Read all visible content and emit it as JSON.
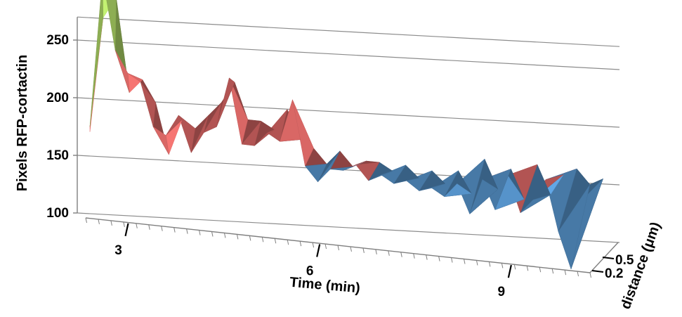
{
  "chart_data": {
    "type": "surface",
    "title": "",
    "ylabel": "Pixels RFP-cortactin",
    "xlabel": "Time (min)",
    "zlabel": "distance (μm)",
    "ylim": [
      100,
      270
    ],
    "y_ticks": [
      "100",
      "150",
      "200",
      "250"
    ],
    "x_ticks": [
      "3",
      "6",
      "9"
    ],
    "z_ticks": [
      "0.2",
      "0.5"
    ],
    "x_range_min": [
      2.4,
      10.3
    ],
    "grid": true,
    "color_bands": [
      {
        "range": [
          100,
          150
        ],
        "color": "#5b9bd5"
      },
      {
        "range": [
          150,
          200
        ],
        "color": "#e46c6a"
      },
      {
        "range": [
          200,
          250
        ],
        "color": "#b5df6a"
      },
      {
        "range": [
          250,
          300
        ],
        "color": "#9b7fcf"
      }
    ],
    "series": [
      {
        "name": "0.2",
        "x": [
          2.4,
          2.6,
          2.8,
          3.0,
          3.2,
          3.4,
          3.6,
          3.8,
          4.0,
          4.2,
          4.4,
          4.6,
          4.8,
          5.0,
          5.2,
          5.4,
          5.6,
          5.8,
          6.0,
          6.2,
          6.4,
          6.6,
          6.8,
          7.0,
          7.2,
          7.4,
          7.6,
          7.8,
          8.0,
          8.2,
          8.4,
          8.6,
          8.8,
          9.0,
          9.2,
          9.4,
          9.6,
          9.8,
          10.0,
          10.2
        ],
        "values": [
          160,
          265,
          215,
          200,
          195,
          165,
          160,
          175,
          150,
          165,
          170,
          205,
          160,
          160,
          170,
          165,
          195,
          150,
          140,
          150,
          150,
          155,
          145,
          150,
          145,
          148,
          142,
          145,
          140,
          150,
          130,
          155,
          135,
          160,
          135,
          145,
          160,
          125,
          100,
          150
        ]
      },
      {
        "name": "0.5",
        "x": [
          2.4,
          2.6,
          2.8,
          3.0,
          3.2,
          3.4,
          3.6,
          3.8,
          4.0,
          4.2,
          4.4,
          4.6,
          4.8,
          5.0,
          5.2,
          5.4,
          5.6,
          5.8,
          6.0,
          6.2,
          6.4,
          6.6,
          6.8,
          7.0,
          7.2,
          7.4,
          7.6,
          7.8,
          8.0,
          8.2,
          8.4,
          8.6,
          8.8,
          9.0,
          9.2,
          9.4,
          9.6,
          9.8,
          10.0,
          10.2
        ],
        "values": [
          150,
          230,
          245,
          180,
          190,
          175,
          140,
          165,
          160,
          170,
          180,
          195,
          170,
          170,
          165,
          180,
          160,
          155,
          145,
          155,
          145,
          150,
          150,
          145,
          150,
          142,
          148,
          140,
          150,
          135,
          160,
          140,
          155,
          135,
          160,
          140,
          155,
          160,
          150,
          155
        ]
      }
    ]
  }
}
